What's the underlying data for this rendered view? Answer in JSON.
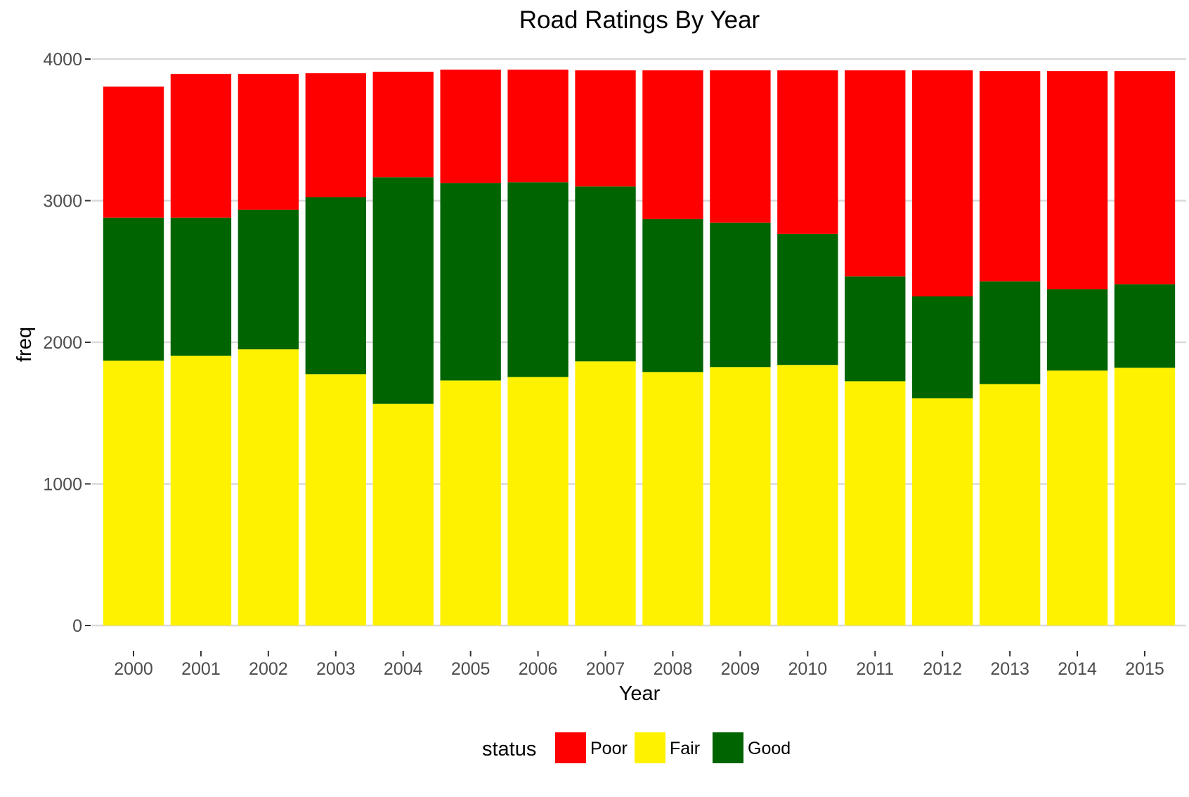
{
  "chart_data": {
    "type": "bar",
    "stacked": true,
    "title": "Road Ratings By Year",
    "xlabel": "Year",
    "ylabel": "freq",
    "ylim": [
      0,
      4000
    ],
    "yticks": [
      "0",
      "1000",
      "2000",
      "3000",
      "4000"
    ],
    "grid": "horizontal",
    "legend_position": "bottom",
    "legend_title": "status",
    "categories": [
      "2000",
      "2001",
      "2002",
      "2003",
      "2004",
      "2005",
      "2006",
      "2007",
      "2008",
      "2009",
      "2010",
      "2011",
      "2012",
      "2013",
      "2014",
      "2015"
    ],
    "series": [
      {
        "name": "Fair",
        "color": "#FFF200",
        "values": [
          1870,
          1905,
          1950,
          1775,
          1565,
          1730,
          1755,
          1865,
          1790,
          1825,
          1840,
          1725,
          1605,
          1705,
          1800,
          1820
        ]
      },
      {
        "name": "Good",
        "color": "#006400",
        "values": [
          1010,
          975,
          985,
          1250,
          1600,
          1395,
          1375,
          1235,
          1080,
          1020,
          925,
          740,
          720,
          725,
          575,
          590
        ]
      },
      {
        "name": "Poor",
        "color": "#FF0000",
        "values": [
          925,
          1015,
          960,
          875,
          745,
          800,
          795,
          820,
          1050,
          1075,
          1155,
          1455,
          1595,
          1485,
          1540,
          1505
        ]
      }
    ],
    "legend_order": [
      "Poor",
      "Fair",
      "Good"
    ]
  }
}
